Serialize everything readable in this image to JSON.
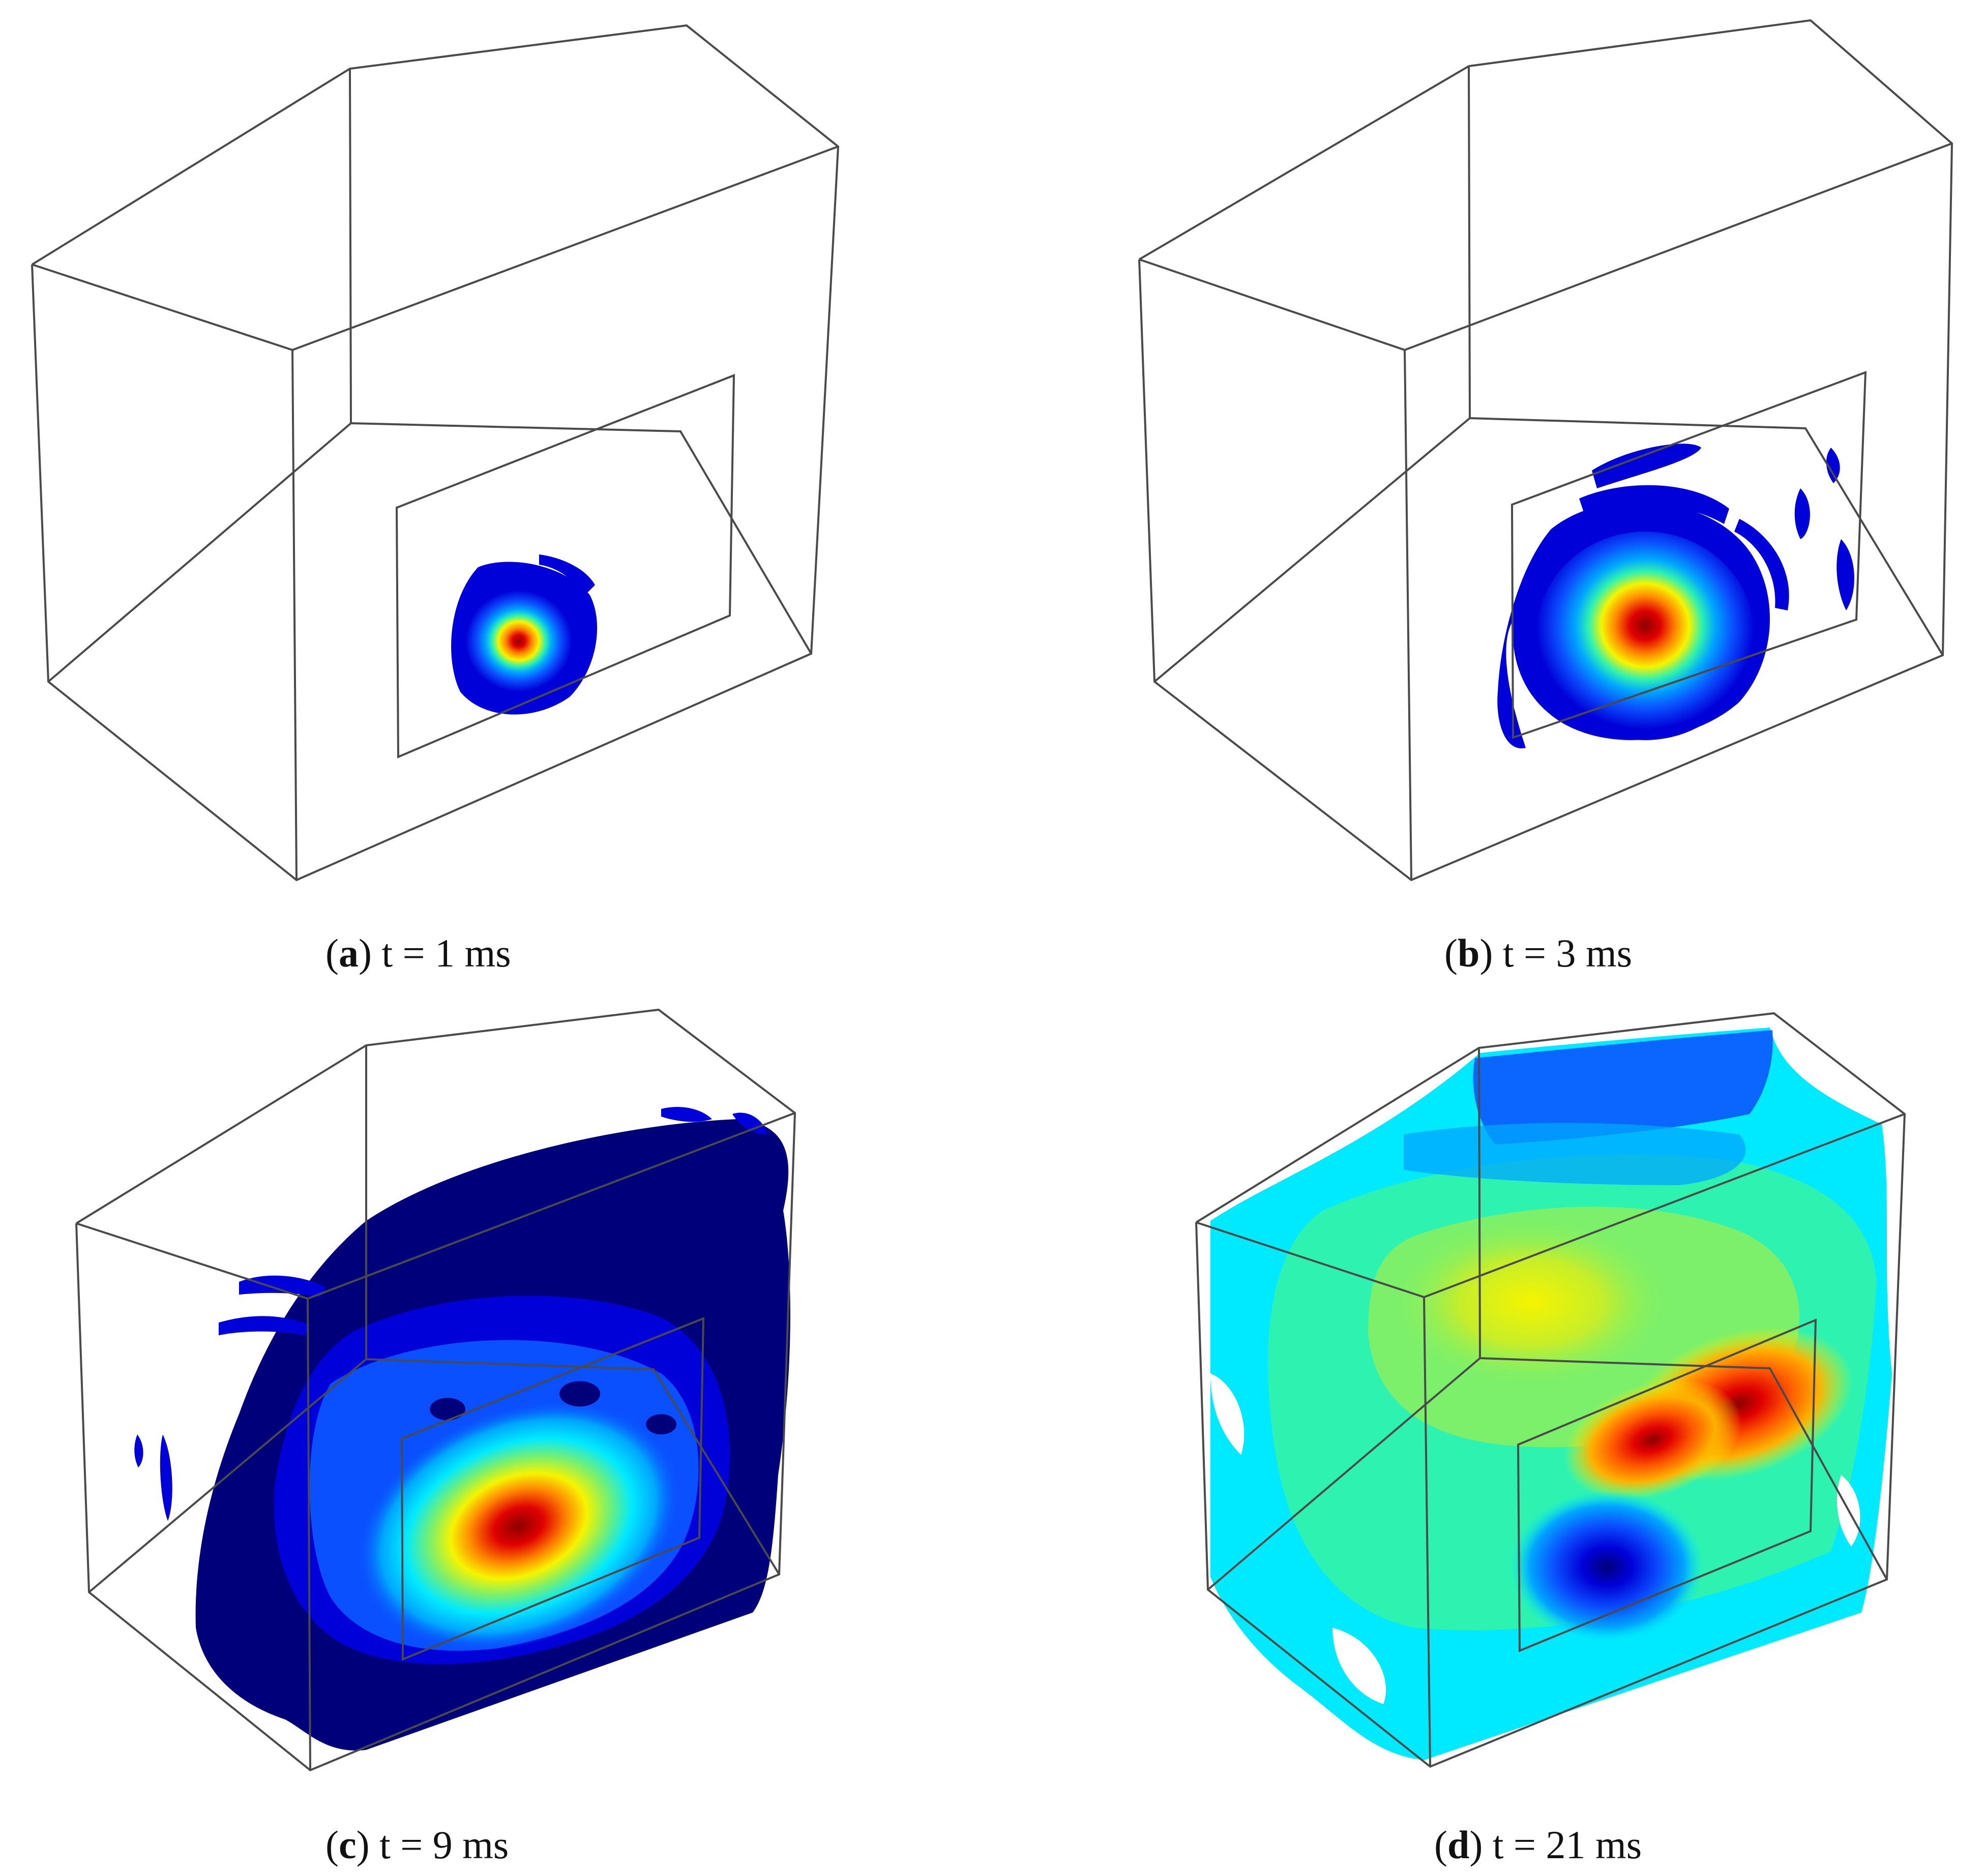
{
  "panels": [
    {
      "letter": "a",
      "label": "t = 1 ms"
    },
    {
      "letter": "b",
      "label": "t = 3 ms"
    },
    {
      "letter": "c",
      "label": "t = 9 ms"
    },
    {
      "letter": "d",
      "label": "t = 21 ms"
    }
  ],
  "colors": {
    "edge": "#4a4a4a",
    "scale": [
      "#00007a",
      "#0000d8",
      "#0a50ff",
      "#00a6ff",
      "#00eaff",
      "#2ef2b0",
      "#7cf06a",
      "#c6ee2a",
      "#f6f400",
      "#ffb000",
      "#ff5a00",
      "#e00000",
      "#8c0000"
    ]
  }
}
